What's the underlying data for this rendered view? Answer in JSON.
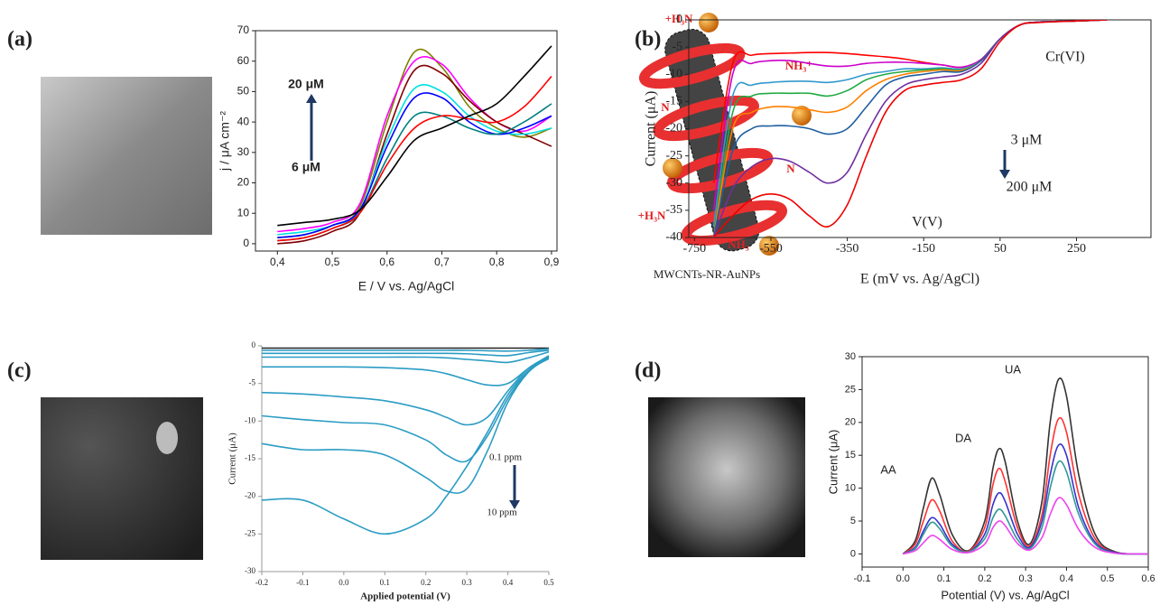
{
  "panels": [
    {
      "label": "(a)"
    },
    {
      "label": "(b)"
    },
    {
      "label": "(c)"
    },
    {
      "label": "(d)"
    }
  ],
  "illustration": {
    "labels": [
      "+H₃N",
      "NH₃⁺",
      "N",
      "+H₃N",
      "N",
      "NH₃"
    ],
    "caption": "MWCNTs-NR-AuNPs"
  },
  "chart_data": [
    {
      "type": "line",
      "x_label": "E / V vs. Ag/AgCl",
      "y_label": "j / μA cm⁻²",
      "annotations": [
        "20 μM",
        "6 μM"
      ],
      "xlim": [
        0.36,
        0.91
      ],
      "ylim": [
        -2.4,
        70
      ],
      "xticks": [
        {
          "value": 0.4,
          "label": "0,4"
        },
        {
          "value": 0.5,
          "label": "0,5"
        },
        {
          "value": 0.6,
          "label": "0,6"
        },
        {
          "value": 0.7,
          "label": "0,7"
        },
        {
          "value": 0.8,
          "label": "0,8"
        },
        {
          "value": 0.9,
          "label": "0,9"
        }
      ],
      "yticks": [
        0,
        10,
        20,
        30,
        40,
        50,
        60,
        70
      ],
      "x": [
        0.4,
        0.45,
        0.5,
        0.55,
        0.6,
        0.65,
        0.7,
        0.75,
        0.8,
        0.85,
        0.9
      ],
      "series": [
        {
          "color": "#7f7f00",
          "values": [
            2,
            3,
            6,
            12,
            40,
            63,
            58,
            45,
            38,
            35,
            38
          ]
        },
        {
          "color": "#ff00ff",
          "values": [
            4,
            5,
            7,
            13,
            42,
            60,
            59,
            48,
            40,
            37,
            42
          ]
        },
        {
          "color": "#800000",
          "values": [
            0,
            1,
            4,
            10,
            36,
            57,
            56,
            47,
            40,
            36,
            32
          ]
        },
        {
          "color": "#00e0e0",
          "values": [
            3,
            4,
            6,
            11,
            34,
            51,
            50,
            42,
            37,
            36,
            38
          ]
        },
        {
          "color": "#0000ff",
          "values": [
            2,
            3,
            6,
            11,
            32,
            48,
            48,
            40,
            36,
            38,
            42
          ]
        },
        {
          "color": "#008080",
          "values": [
            1,
            2,
            5,
            10,
            28,
            42,
            42,
            38,
            36,
            40,
            46
          ]
        },
        {
          "color": "#ff0000",
          "values": [
            1,
            2,
            5,
            10,
            26,
            38,
            42,
            41,
            40,
            45,
            55
          ]
        },
        {
          "color": "#000000",
          "values": [
            6,
            7,
            8,
            11,
            22,
            34,
            38,
            42,
            46,
            55,
            65
          ]
        }
      ]
    },
    {
      "type": "line",
      "x_label": "E (mV vs. Ag/AgCl)",
      "y_label": "Current (μA)",
      "annotations": [
        "Cr(VI)",
        "3 μM",
        "200 μM",
        "V(V)"
      ],
      "xlim": [
        -765,
        445
      ],
      "ylim": [
        -40,
        0
      ],
      "xticks": [
        -750,
        -550,
        -350,
        -150,
        50,
        250
      ],
      "yticks": [
        0,
        -5,
        -10,
        -15,
        -20,
        -25,
        -30,
        -35,
        -40
      ],
      "x": [
        -700,
        -650,
        -600,
        -550,
        -500,
        -450,
        -400,
        -350,
        -300,
        -250,
        -200,
        -150,
        -100,
        -50,
        0,
        50,
        100,
        150,
        250,
        330
      ],
      "series": [
        {
          "color": "#ff0000",
          "values": [
            -30,
            -8,
            -6.5,
            -6.2,
            -6.1,
            -6,
            -6,
            -6.2,
            -6.5,
            -6.8,
            -7.2,
            -7.8,
            -8.3,
            -8.7,
            -7.3,
            -3.5,
            -1,
            -0.4,
            -0.2,
            0
          ]
        },
        {
          "color": "#cc00cc",
          "values": [
            -35,
            -10,
            -8,
            -7.5,
            -7.5,
            -8,
            -8.5,
            -8.5,
            -8,
            -7.8,
            -7.8,
            -8,
            -8.3,
            -8.7,
            -7.3,
            -3.5,
            -1,
            -0.4,
            -0.2,
            0
          ]
        },
        {
          "color": "#3399cc",
          "values": [
            -38,
            -14,
            -12,
            -11.5,
            -11.3,
            -11.3,
            -11.5,
            -11,
            -10,
            -9.5,
            -9,
            -9,
            -8.8,
            -9,
            -7.5,
            -3.5,
            -1,
            -0.4,
            -0.2,
            0
          ]
        },
        {
          "color": "#22aa44",
          "values": [
            -40,
            -17,
            -14,
            -13.5,
            -13.5,
            -13.5,
            -14,
            -13,
            -11,
            -10,
            -9.5,
            -9.2,
            -9,
            -9.2,
            -7.5,
            -3.5,
            -1,
            -0.4,
            -0.2,
            0
          ]
        },
        {
          "color": "#ff8000",
          "values": [
            -40,
            -20,
            -17,
            -16,
            -16,
            -16.5,
            -17,
            -16,
            -13,
            -11,
            -10,
            -9.5,
            -9.2,
            -9.3,
            -7.5,
            -3.5,
            -1,
            -0.4,
            -0.2,
            0
          ]
        },
        {
          "color": "#1f5fa0",
          "values": [
            -40,
            -24,
            -20,
            -19.5,
            -19.5,
            -20,
            -21,
            -20,
            -16,
            -12,
            -10.5,
            -10,
            -9.5,
            -9.5,
            -7.5,
            -3.5,
            -1,
            -0.4,
            -0.2,
            0
          ]
        },
        {
          "color": "#7030a0",
          "values": [
            -40,
            -31,
            -27,
            -25.5,
            -26,
            -28,
            -30,
            -28,
            -21,
            -15,
            -12,
            -11,
            -10.5,
            -10,
            -8,
            -3.5,
            -1,
            -0.4,
            -0.2,
            0
          ]
        },
        {
          "color": "#ee0000",
          "values": [
            -40,
            -36,
            -33,
            -32,
            -33,
            -36,
            -38,
            -34,
            -25,
            -17,
            -13,
            -12,
            -11.5,
            -11,
            -9,
            -4,
            -1,
            -0.5,
            -0.2,
            0
          ]
        }
      ]
    },
    {
      "type": "line",
      "x_label": "Applied potential (V)",
      "y_label": "Current (μA)",
      "annotations": [
        "0.1 ppm",
        "10 ppm"
      ],
      "xlim": [
        -0.2,
        0.5
      ],
      "ylim": [
        -30,
        0
      ],
      "xticks": [
        -0.2,
        -0.1,
        {
          "value": 0,
          "label": "0.0"
        },
        0.1,
        0.2,
        0.3,
        0.4,
        0.5
      ],
      "yticks": [
        0,
        -5,
        -10,
        -15,
        -20,
        -25,
        -30
      ],
      "x": [
        -0.2,
        -0.1,
        0,
        0.1,
        0.2,
        0.25,
        0.3,
        0.35,
        0.4,
        0.45,
        0.5
      ],
      "series": [
        {
          "color": "#222222",
          "values": [
            -0.3,
            -0.3,
            -0.3,
            -0.3,
            -0.3,
            -0.3,
            -0.3,
            -0.3,
            -0.3,
            -0.3,
            -0.3
          ]
        },
        {
          "color": "#2b9cc4",
          "values": [
            -0.6,
            -0.6,
            -0.6,
            -0.6,
            -0.6,
            -0.6,
            -0.6,
            -0.65,
            -0.7,
            -0.6,
            -0.4
          ]
        },
        {
          "color": "#2b9cc4",
          "values": [
            -1,
            -1,
            -1,
            -1,
            -1,
            -1,
            -1.05,
            -1.2,
            -1.3,
            -0.9,
            -0.6
          ]
        },
        {
          "color": "#2b9cc4",
          "values": [
            -1.5,
            -1.5,
            -1.5,
            -1.5,
            -1.5,
            -1.6,
            -1.8,
            -2,
            -2.2,
            -1.6,
            -0.8
          ]
        },
        {
          "color": "#2b9cc4",
          "values": [
            -2.8,
            -2.8,
            -2.8,
            -2.9,
            -3.2,
            -3.7,
            -4.5,
            -5.2,
            -5,
            -3,
            -1.3
          ]
        },
        {
          "color": "#2b9cc4",
          "values": [
            -6.2,
            -6.4,
            -6.8,
            -7.3,
            -8.5,
            -9.5,
            -10.5,
            -9.5,
            -6,
            -3,
            -1.4
          ]
        },
        {
          "color": "#2b9cc4",
          "values": [
            -9.3,
            -9.8,
            -10.2,
            -10.5,
            -12.5,
            -14.5,
            -15.3,
            -12,
            -7,
            -3.3,
            -1.5
          ]
        },
        {
          "color": "#2b9cc4",
          "values": [
            -13,
            -13.8,
            -13.8,
            -14.5,
            -17.5,
            -19.3,
            -19,
            -14,
            -7.5,
            -3.5,
            -1.6
          ]
        },
        {
          "color": "#2b9cc4",
          "values": [
            -20.5,
            -20.5,
            -23,
            -25,
            -23,
            -20,
            -16,
            -11.5,
            -6.5,
            -3.3,
            -1.7
          ]
        }
      ]
    },
    {
      "type": "line",
      "x_label": "Potential (V) vs. Ag/AgCl",
      "y_label": "Current (μA)",
      "annotations": [
        "AA",
        "DA",
        "UA"
      ],
      "xlim": [
        -0.1,
        0.6
      ],
      "ylim": [
        -2,
        30
      ],
      "xticks": [
        -0.1,
        {
          "value": 0,
          "label": "0.0"
        },
        0.1,
        0.2,
        0.3,
        0.4,
        0.5,
        0.6
      ],
      "yticks": [
        0,
        5,
        10,
        15,
        20,
        25,
        30
      ],
      "x": [
        0,
        0.03,
        0.05,
        0.07,
        0.09,
        0.12,
        0.16,
        0.2,
        0.22,
        0.235,
        0.25,
        0.28,
        0.31,
        0.34,
        0.36,
        0.38,
        0.4,
        0.43,
        0.47,
        0.52,
        0.6
      ],
      "series": [
        {
          "color": "#333333",
          "values": [
            0,
            2,
            7,
            11.5,
            9,
            3,
            0.5,
            5,
            13,
            16,
            14,
            5,
            1.5,
            8,
            20,
            26.5,
            24,
            12,
            3,
            0.3,
            0
          ]
        },
        {
          "color": "#ff3333",
          "values": [
            0,
            1.5,
            5,
            8.2,
            6.5,
            2,
            0.4,
            4,
            10.5,
            13,
            11,
            4,
            1.2,
            6,
            15,
            20.5,
            18.5,
            9,
            2.3,
            0.2,
            0
          ]
        },
        {
          "color": "#3333cc",
          "values": [
            0,
            1,
            3.5,
            5.5,
            4.5,
            1.5,
            0.3,
            3,
            7.5,
            9.3,
            8,
            3,
            1,
            5,
            12,
            16.5,
            15,
            7,
            1.8,
            0.2,
            0
          ]
        },
        {
          "color": "#339999",
          "values": [
            0,
            0.8,
            3,
            4.8,
            3.8,
            1.2,
            0.3,
            2.3,
            5.5,
            6.8,
            5.8,
            2.2,
            0.8,
            4,
            10,
            14,
            12.5,
            6,
            1.5,
            0.1,
            0
          ]
        },
        {
          "color": "#ee44ee",
          "values": [
            0,
            0.5,
            1.7,
            2.8,
            2.2,
            0.7,
            0.2,
            1.5,
            4,
            5,
            4.3,
            1.6,
            0.6,
            2.5,
            6,
            8.5,
            7.5,
            3.7,
            1,
            0.1,
            0
          ]
        }
      ]
    }
  ]
}
